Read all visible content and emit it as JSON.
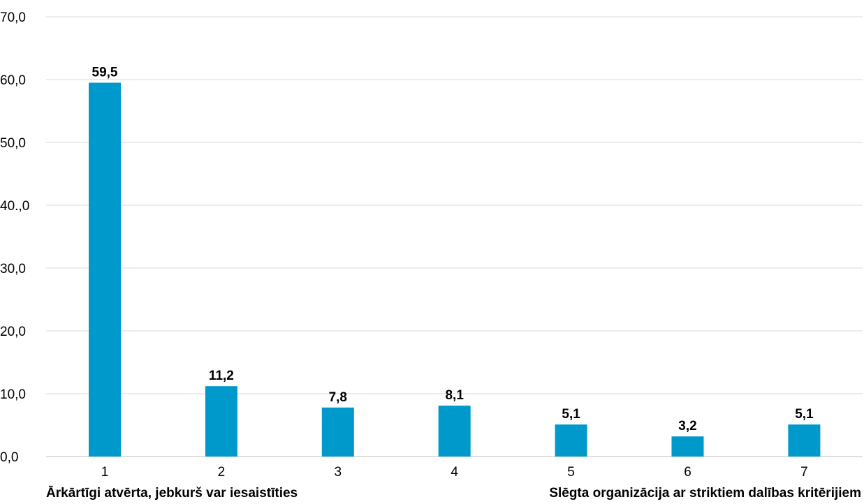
{
  "chart_data": {
    "type": "bar",
    "categories": [
      "1",
      "2",
      "3",
      "4",
      "5",
      "6",
      "7"
    ],
    "values": [
      59.5,
      11.2,
      7.8,
      8.1,
      5.1,
      3.2,
      5.1
    ],
    "value_labels": [
      "59,5",
      "11,2",
      "7,8",
      "8,1",
      "5,1",
      "3,2",
      "5,1"
    ],
    "y_ticks": [
      0,
      10,
      20,
      30,
      40,
      50,
      60,
      70
    ],
    "y_tick_labels": [
      "0,0",
      "10,0",
      "20,0",
      "30,0",
      "40.,0",
      "50,0",
      "60,0",
      "70,0"
    ],
    "ylim": [
      0,
      70
    ],
    "grid": true,
    "bar_color": "#0099CC",
    "grid_color": "#D9D9D9",
    "axis_color": "#BFBFBF",
    "scale_labels": {
      "left": "Ārkārtīgi atvērta, jebkurš var iesaistīties",
      "right": "Slēgta organizācija ar striktiem dalības kritērijiem"
    }
  }
}
